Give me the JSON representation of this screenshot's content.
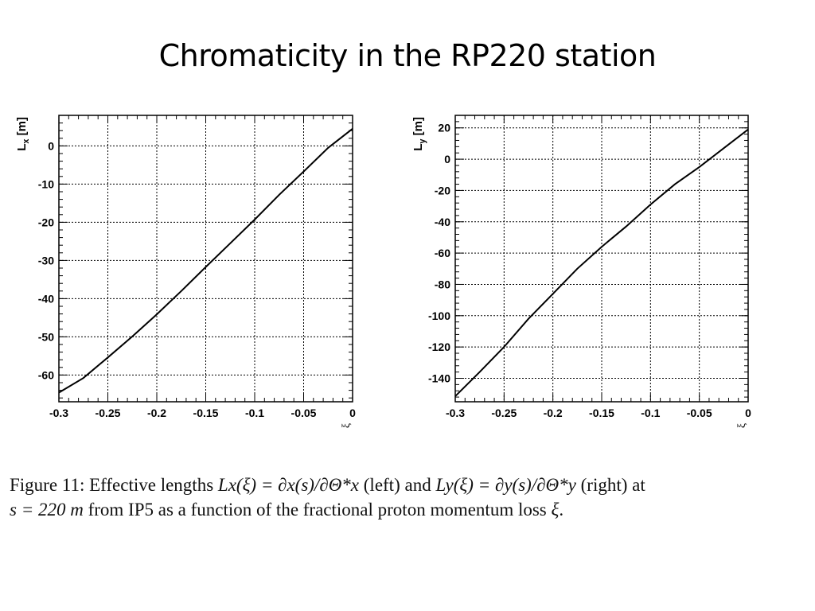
{
  "slide": {
    "title": "Chromaticity in the RP220 station"
  },
  "chart_data": [
    {
      "type": "line",
      "ylabel": "L",
      "ylabel_sub": "x",
      "ylabel_unit": "[m]",
      "xlabel": "ξ",
      "xlim": [
        -0.3,
        0
      ],
      "ylim": [
        -67,
        8
      ],
      "grid": true,
      "x_ticks": [
        -0.3,
        -0.25,
        -0.2,
        -0.15,
        -0.1,
        -0.05,
        0
      ],
      "x_tick_labels": [
        "-0.3",
        "-0.25",
        "-0.2",
        "-0.15",
        "-0.1",
        "-0.05",
        "0"
      ],
      "y_ticks": [
        0,
        -10,
        -20,
        -30,
        -40,
        -50,
        -60
      ],
      "y_tick_labels": [
        "0",
        "-10",
        "-20",
        "-30",
        "-40",
        "-50",
        "-60"
      ],
      "series": [
        {
          "x": [
            -0.3,
            -0.275,
            -0.25,
            -0.225,
            -0.2,
            -0.175,
            -0.15,
            -0.125,
            -0.1,
            -0.075,
            -0.05,
            -0.025,
            0
          ],
          "y": [
            -64.6,
            -60.8,
            -55.4,
            -49.9,
            -44.1,
            -38.0,
            -31.7,
            -25.5,
            -19.3,
            -12.8,
            -6.7,
            -0.5,
            4.5
          ]
        }
      ]
    },
    {
      "type": "line",
      "ylabel": "L",
      "ylabel_sub": "y",
      "ylabel_unit": "[m]",
      "xlabel": "ξ",
      "xlim": [
        -0.3,
        0
      ],
      "ylim": [
        -155,
        28
      ],
      "grid": true,
      "x_ticks": [
        -0.3,
        -0.25,
        -0.2,
        -0.15,
        -0.1,
        -0.05,
        0
      ],
      "x_tick_labels": [
        "-0.3",
        "-0.25",
        "-0.2",
        "-0.15",
        "-0.1",
        "-0.05",
        "0"
      ],
      "y_ticks": [
        20,
        0,
        -20,
        -40,
        -60,
        -80,
        -100,
        -120,
        -140
      ],
      "y_tick_labels": [
        "20",
        "0",
        "-20",
        "-40",
        "-60",
        "-80",
        "-100",
        "-120",
        "-140"
      ],
      "series": [
        {
          "x": [
            -0.3,
            -0.275,
            -0.25,
            -0.225,
            -0.2,
            -0.175,
            -0.15,
            -0.125,
            -0.1,
            -0.075,
            -0.05,
            -0.025,
            0
          ],
          "y": [
            -151.5,
            -136,
            -120,
            -102,
            -86,
            -70,
            -56,
            -43,
            -29,
            -16,
            -5,
            7,
            19
          ]
        }
      ]
    }
  ],
  "caption": {
    "figure_label": "Figure 11:",
    "text_1": "Effective lengths",
    "lx_formula": "Lx(ξ) = ∂x(s)/∂Θ*x",
    "left": "(left) and",
    "ly_formula": "Ly(ξ) = ∂y(s)/∂Θ*y",
    "right": "(right) at",
    "s_formula": "s = 220 m",
    "text_2": "from IP5 as a function of the fractional proton momentum loss",
    "xi": "ξ",
    "end": "."
  }
}
